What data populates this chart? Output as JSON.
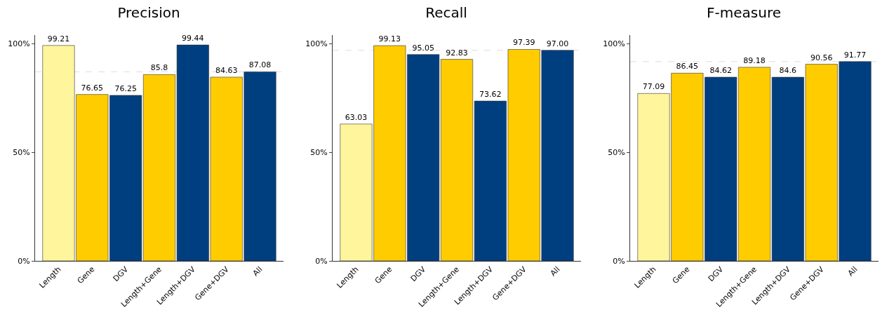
{
  "chart_data": [
    {
      "type": "bar",
      "title": "Precision",
      "categories": [
        "Length",
        "Gene",
        "DGV",
        "Length+Gene",
        "Length+DGV",
        "Gene+DGV",
        "All"
      ],
      "values": [
        99.21,
        76.65,
        76.25,
        85.8,
        99.44,
        84.63,
        87.08
      ],
      "value_labels": [
        "99.21",
        "76.65",
        "76.25",
        "85.8",
        "99.44",
        "84.63",
        "87.08"
      ],
      "colors": [
        "#fff59d",
        "#ffcc00",
        "#003f7f",
        "#ffcc00",
        "#003f7f",
        "#ffcc00",
        "#003f7f"
      ],
      "ylim": [
        0,
        104
      ],
      "yticks": [
        {
          "value": 0,
          "label": "0%"
        },
        {
          "value": 50,
          "label": "50%"
        },
        {
          "value": 100,
          "label": "100%"
        }
      ],
      "grid": false,
      "ref_lines": [
        {
          "axis": "y",
          "value": 87.08,
          "color": "#dddddd",
          "line_style": "dashed"
        }
      ]
    },
    {
      "type": "bar",
      "title": "Recall",
      "categories": [
        "Length",
        "Gene",
        "DGV",
        "Length+Gene",
        "Length+DGV",
        "Gene+DGV",
        "All"
      ],
      "values": [
        63.03,
        99.13,
        95.05,
        92.83,
        73.62,
        97.39,
        97.0
      ],
      "value_labels": [
        "63.03",
        "99.13",
        "95.05",
        "92.83",
        "73.62",
        "97.39",
        "97.00"
      ],
      "colors": [
        "#fff59d",
        "#ffcc00",
        "#003f7f",
        "#ffcc00",
        "#003f7f",
        "#ffcc00",
        "#003f7f"
      ],
      "ylim": [
        0,
        104
      ],
      "yticks": [
        {
          "value": 0,
          "label": "0%"
        },
        {
          "value": 50,
          "label": "50%"
        },
        {
          "value": 100,
          "label": "100%"
        }
      ],
      "grid": false,
      "ref_lines": [
        {
          "axis": "y",
          "value": 97.0,
          "color": "#dddddd",
          "line_style": "dashed"
        }
      ]
    },
    {
      "type": "bar",
      "title": "F-measure",
      "categories": [
        "Length",
        "Gene",
        "DGV",
        "Length+Gene",
        "Length+DGV",
        "Gene+DGV",
        "All"
      ],
      "values": [
        77.09,
        86.45,
        84.62,
        89.18,
        84.6,
        90.56,
        91.77
      ],
      "value_labels": [
        "77.09",
        "86.45",
        "84.62",
        "89.18",
        "84.6",
        "90.56",
        "91.77"
      ],
      "colors": [
        "#fff59d",
        "#ffcc00",
        "#003f7f",
        "#ffcc00",
        "#003f7f",
        "#ffcc00",
        "#003f7f"
      ],
      "ylim": [
        0,
        104
      ],
      "yticks": [
        {
          "value": 0,
          "label": "0%"
        },
        {
          "value": 50,
          "label": "50%"
        },
        {
          "value": 100,
          "label": "100%"
        }
      ],
      "grid": false,
      "ref_lines": [
        {
          "axis": "y",
          "value": 91.77,
          "color": "#dddddd",
          "line_style": "dashed"
        }
      ]
    }
  ]
}
